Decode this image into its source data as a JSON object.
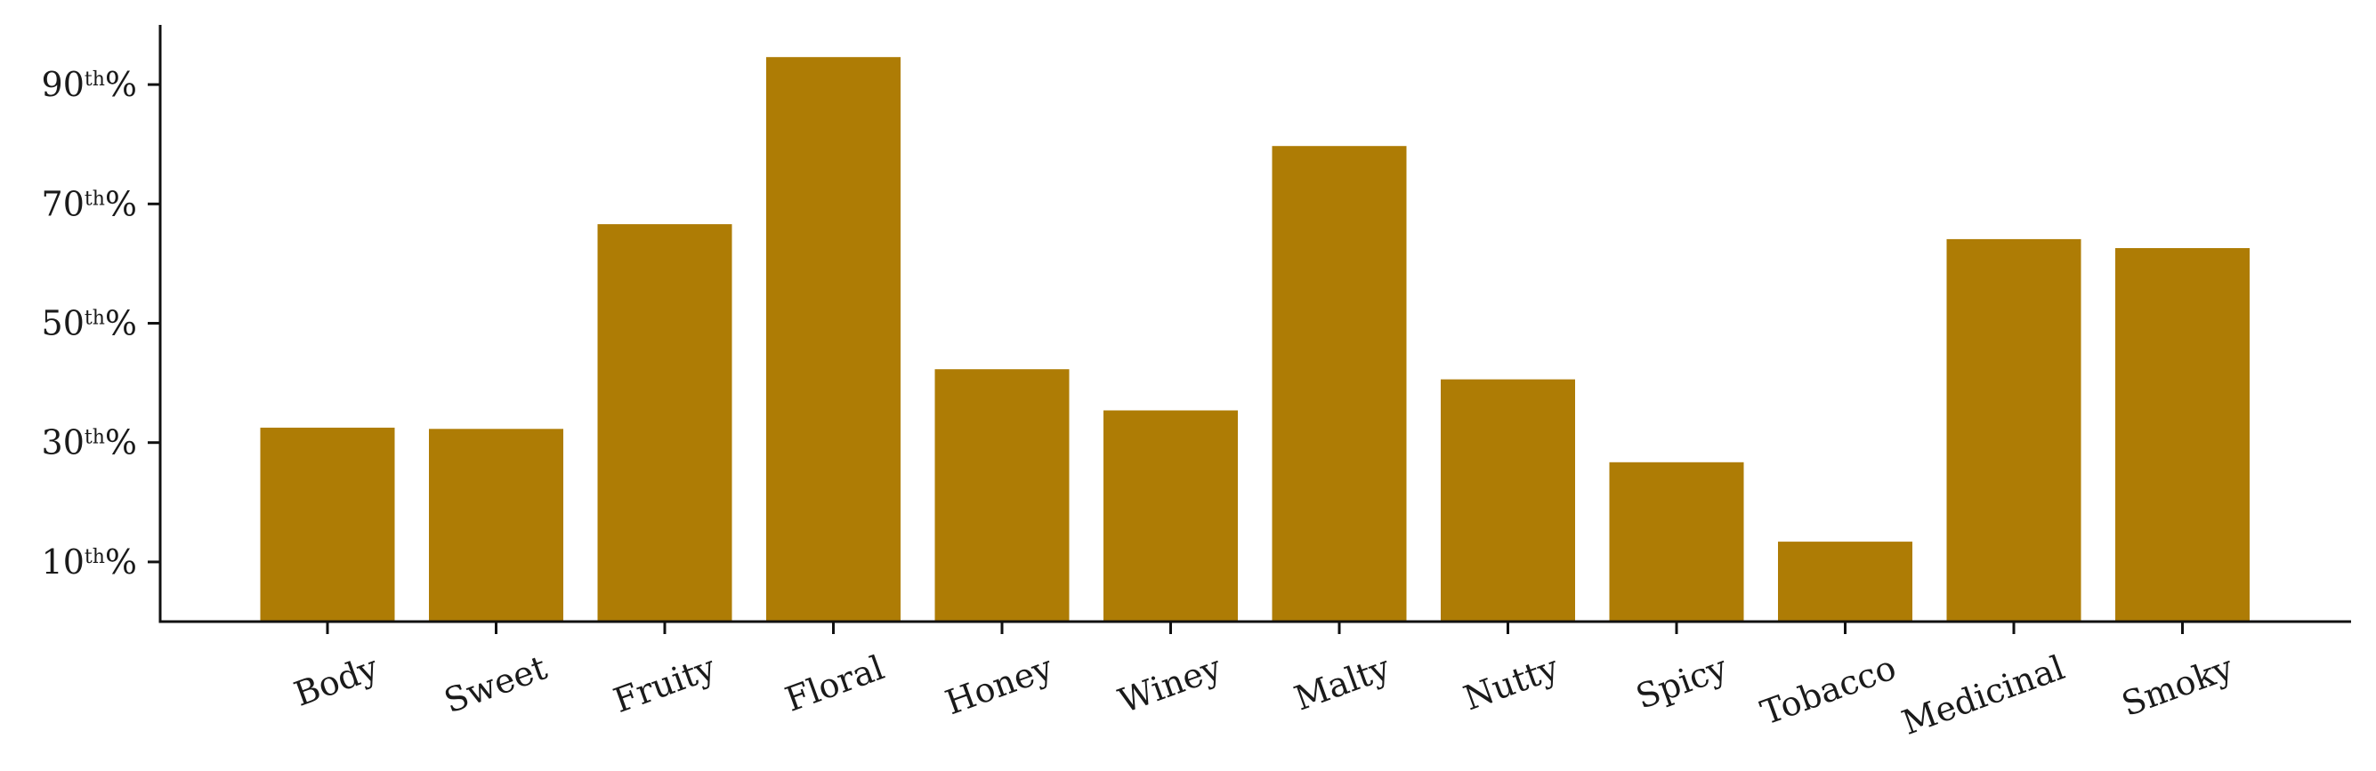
{
  "chart_data": {
    "type": "bar",
    "title": "",
    "xlabel": "",
    "ylabel": "",
    "categories": [
      "Body",
      "Sweet",
      "Fruity",
      "Floral",
      "Honey",
      "Winey",
      "Malty",
      "Nutty",
      "Spicy",
      "Tobacco",
      "Medicinal",
      "Smoky"
    ],
    "values": [
      32.5,
      32.3,
      66.6,
      94.6,
      42.3,
      35.4,
      79.7,
      40.6,
      26.7,
      13.4,
      64.1,
      62.6
    ],
    "ylim": [
      0,
      100
    ],
    "yticks": [
      {
        "value": 10,
        "num": "10",
        "sup": "th",
        "pct": "%"
      },
      {
        "value": 30,
        "num": "30",
        "sup": "th",
        "pct": "%"
      },
      {
        "value": 50,
        "num": "50",
        "sup": "th",
        "pct": "%"
      },
      {
        "value": 70,
        "num": "70",
        "sup": "th",
        "pct": "%"
      },
      {
        "value": 90,
        "num": "90",
        "sup": "th",
        "pct": "%"
      }
    ],
    "bar_color": "#ae7c05",
    "grid": false,
    "legend": "none"
  }
}
